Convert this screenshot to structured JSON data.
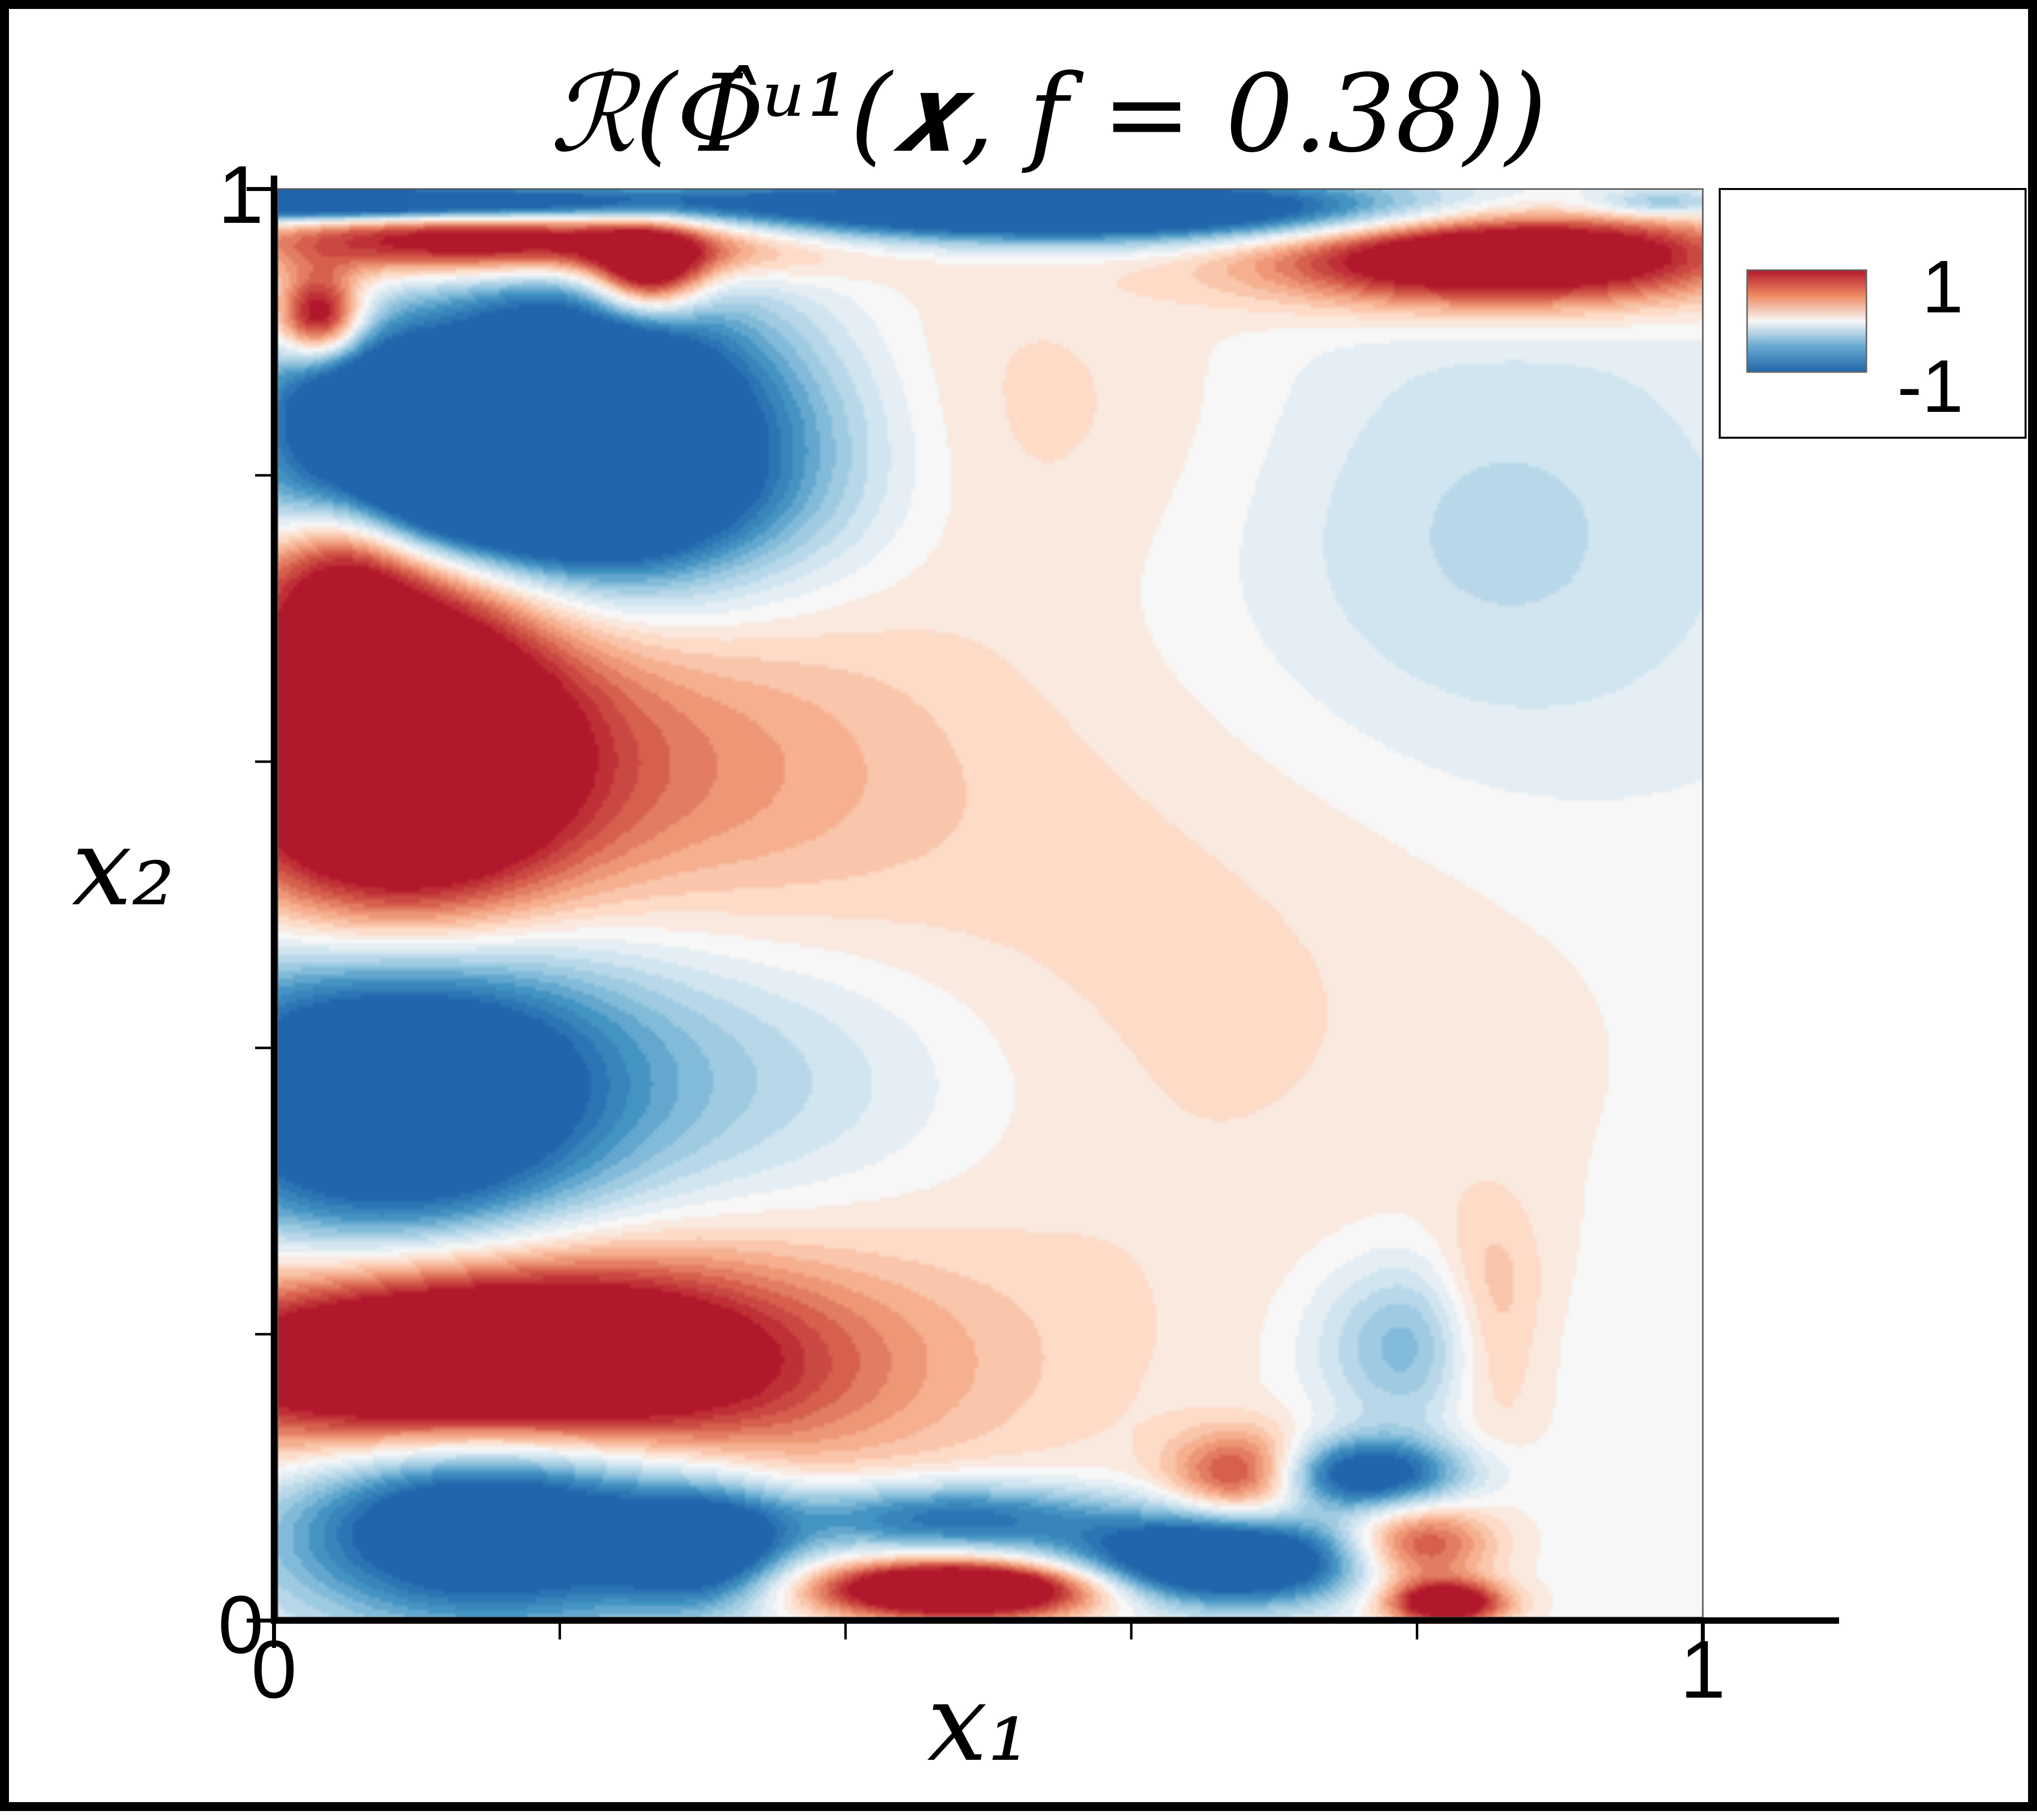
{
  "chart_data": {
    "type": "heatmap",
    "title": "ℛ(Φ̂ᵘ¹(𝒙, f = 0.38))",
    "xlabel": "x₁",
    "ylabel": "x₂",
    "xlim": [
      0,
      1
    ],
    "ylim": [
      0,
      1
    ],
    "x_tick_labels": [
      {
        "value": 0,
        "label": "0"
      },
      {
        "value": 1,
        "label": "1"
      }
    ],
    "y_tick_labels": [
      {
        "value": 0,
        "label": "0"
      },
      {
        "value": 1,
        "label": "1"
      }
    ],
    "minor_ticks": [
      0.2,
      0.4,
      0.6,
      0.8
    ],
    "grid": false,
    "colorbar": {
      "placement": "top-right",
      "max_label": "1",
      "min_label": "-1",
      "range": [
        -1,
        1
      ],
      "colors": [
        "#2166ac",
        "#f7f7f7",
        "#b2182b"
      ]
    },
    "field_blobs": [
      {
        "cx": 0.03,
        "cy": 0.99,
        "rx": 0.23,
        "ry": 0.012,
        "amp": -1.8
      },
      {
        "cx": 0.18,
        "cy": 0.965,
        "rx": 0.18,
        "ry": 0.025,
        "amp": 1.6
      },
      {
        "cx": 0.26,
        "cy": 0.94,
        "rx": 0.04,
        "ry": 0.03,
        "amp": 1.4
      },
      {
        "cx": 0.55,
        "cy": 0.985,
        "rx": 0.3,
        "ry": 0.022,
        "amp": -1.8
      },
      {
        "cx": 0.86,
        "cy": 0.955,
        "rx": 0.16,
        "ry": 0.035,
        "amp": 1.8
      },
      {
        "cx": 0.97,
        "cy": 0.99,
        "rx": 0.05,
        "ry": 0.01,
        "amp": -0.5
      },
      {
        "cx": 0.03,
        "cy": 0.91,
        "rx": 0.03,
        "ry": 0.03,
        "amp": 1.4
      },
      {
        "cx": 0.06,
        "cy": 0.84,
        "rx": 0.08,
        "ry": 0.06,
        "amp": -1.6
      },
      {
        "cx": 0.2,
        "cy": 0.83,
        "rx": 0.11,
        "ry": 0.1,
        "amp": -2.2
      },
      {
        "cx": 0.32,
        "cy": 0.82,
        "rx": 0.12,
        "ry": 0.1,
        "amp": -0.7
      },
      {
        "cx": 0.05,
        "cy": 0.76,
        "rx": 0.05,
        "ry": 0.06,
        "amp": 0.6
      },
      {
        "cx": 0.12,
        "cy": 0.78,
        "rx": 0.14,
        "ry": 0.04,
        "amp": -1.2
      },
      {
        "cx": 0.08,
        "cy": 0.6,
        "rx": 0.12,
        "ry": 0.16,
        "amp": 2.0
      },
      {
        "cx": 0.25,
        "cy": 0.6,
        "rx": 0.2,
        "ry": 0.12,
        "amp": 0.5
      },
      {
        "cx": 0.08,
        "cy": 0.38,
        "rx": 0.14,
        "ry": 0.12,
        "amp": -2.0
      },
      {
        "cx": 0.3,
        "cy": 0.38,
        "rx": 0.2,
        "ry": 0.1,
        "amp": -0.4
      },
      {
        "cx": 0.13,
        "cy": 0.18,
        "rx": 0.2,
        "ry": 0.07,
        "amp": 2.0
      },
      {
        "cx": 0.3,
        "cy": 0.17,
        "rx": 0.25,
        "ry": 0.1,
        "amp": 0.4
      },
      {
        "cx": 0.15,
        "cy": 0.07,
        "rx": 0.14,
        "ry": 0.07,
        "amp": -1.8
      },
      {
        "cx": 0.3,
        "cy": 0.05,
        "rx": 0.06,
        "ry": 0.04,
        "amp": -1.2
      },
      {
        "cx": 0.47,
        "cy": 0.07,
        "rx": 0.12,
        "ry": 0.025,
        "amp": -1.0
      },
      {
        "cx": 0.48,
        "cy": 0.02,
        "rx": 0.1,
        "ry": 0.02,
        "amp": 1.9
      },
      {
        "cx": 0.66,
        "cy": 0.04,
        "rx": 0.1,
        "ry": 0.03,
        "amp": -1.8
      },
      {
        "cx": 0.76,
        "cy": 0.1,
        "rx": 0.07,
        "ry": 0.025,
        "amp": -1.3
      },
      {
        "cx": 0.68,
        "cy": 0.1,
        "rx": 0.05,
        "ry": 0.03,
        "amp": 1.0
      },
      {
        "cx": 0.8,
        "cy": 0.05,
        "rx": 0.05,
        "ry": 0.03,
        "amp": 0.9
      },
      {
        "cx": 0.82,
        "cy": 0.01,
        "rx": 0.04,
        "ry": 0.015,
        "amp": 1.4
      },
      {
        "cx": 0.8,
        "cy": 0.19,
        "rx": 0.07,
        "ry": 0.06,
        "amp": -0.6
      },
      {
        "cx": 0.85,
        "cy": 0.2,
        "rx": 0.04,
        "ry": 0.08,
        "amp": 0.5
      },
      {
        "cx": 0.6,
        "cy": 0.45,
        "rx": 0.3,
        "ry": 0.25,
        "amp": 0.2
      },
      {
        "cx": 0.85,
        "cy": 0.75,
        "rx": 0.2,
        "ry": 0.18,
        "amp": -0.3
      },
      {
        "cx": 0.5,
        "cy": 0.85,
        "rx": 0.2,
        "ry": 0.12,
        "amp": 0.2
      }
    ]
  }
}
